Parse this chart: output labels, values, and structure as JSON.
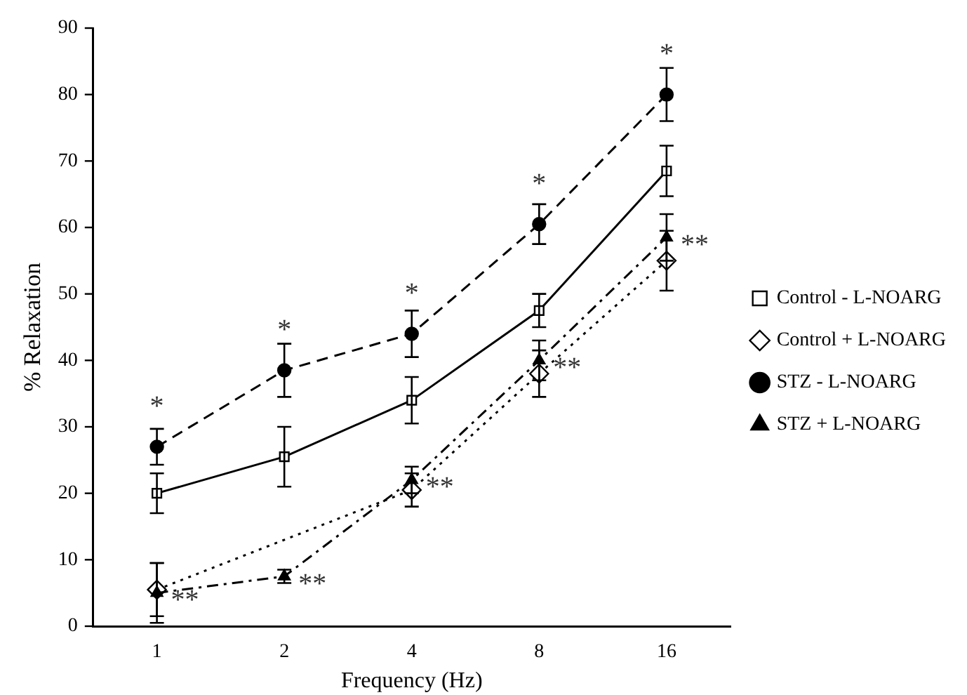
{
  "chart_data": {
    "type": "line",
    "xlabel": "Frequency (Hz)",
    "ylabel": "% Relaxation",
    "categories": [
      "1",
      "2",
      "4",
      "8",
      "16"
    ],
    "ylim": [
      0,
      90
    ],
    "yticks": [
      0,
      10,
      20,
      30,
      40,
      50,
      60,
      70,
      80,
      90
    ],
    "grid": false,
    "legend": "right",
    "series": [
      {
        "name": "Control - L-NOARG",
        "color": "#000000",
        "marker": "square",
        "line_style": "solid",
        "values": [
          20,
          25.5,
          34,
          47.5,
          68.5
        ],
        "errors": [
          3,
          4.5,
          3.5,
          2.5,
          3.8
        ]
      },
      {
        "name": "Control + L-NOARG",
        "color": "#000000",
        "marker": "diamond",
        "line_style": "dotted",
        "values": [
          5.5,
          null,
          20.5,
          38,
          55
        ],
        "errors": [
          4,
          null,
          2.5,
          3.5,
          4.5
        ]
      },
      {
        "name": "STZ - L-NOARG",
        "color": "#000000",
        "marker": "circle",
        "line_style": "dashed",
        "values": [
          27,
          38.5,
          44,
          60.5,
          80
        ],
        "errors": [
          2.7,
          4,
          3.5,
          3,
          4
        ]
      },
      {
        "name": "STZ + L-NOARG",
        "color": "#000000",
        "marker": "triangle",
        "line_style": "dashdot",
        "values": [
          5,
          7.5,
          22,
          40,
          58.5
        ],
        "errors": [
          4.5,
          1,
          2,
          3,
          3.5
        ]
      }
    ],
    "annotations": [
      {
        "text": "*",
        "x": "1",
        "y": 27
      },
      {
        "text": "*",
        "x": "2",
        "y": 38.5
      },
      {
        "text": "*",
        "x": "4",
        "y": 44
      },
      {
        "text": "*",
        "x": "8",
        "y": 60.5
      },
      {
        "text": "*",
        "x": "16",
        "y": 80
      },
      {
        "text": "**",
        "x": "1",
        "y": 5
      },
      {
        "text": "**",
        "x": "2",
        "y": 7.5
      },
      {
        "text": "**",
        "x": "4",
        "y": 22
      },
      {
        "text": "**",
        "x": "8",
        "y": 40
      },
      {
        "text": "**",
        "x": "16",
        "y": 58.5
      }
    ]
  }
}
